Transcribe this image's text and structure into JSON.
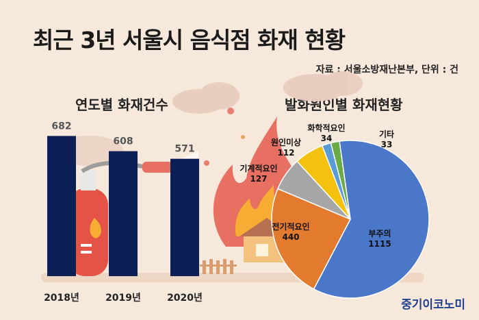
{
  "title": "최근 3년 서울시 음식점 화재 현황",
  "source": "자료 : 서울소방재난본부, 단위 : 건",
  "brand": "중기이코노미",
  "chart_data": [
    {
      "type": "bar",
      "title": "연도별 화재건수",
      "categories": [
        "2018년",
        "2019년",
        "2020년"
      ],
      "values": [
        682,
        608,
        571
      ],
      "color": "#0c1f57"
    },
    {
      "type": "pie",
      "title": "발화원인별 화재현황",
      "slices": [
        {
          "label": "부주의",
          "value": 1115,
          "color": "#4a77c8"
        },
        {
          "label": "전기적요인",
          "value": 440,
          "color": "#e27b2e"
        },
        {
          "label": "기계적요인",
          "value": 127,
          "color": "#a6a6a6"
        },
        {
          "label": "원인미상",
          "value": 112,
          "color": "#f4c20e"
        },
        {
          "label": "화학적요인",
          "value": 34,
          "color": "#5a9bd5"
        },
        {
          "label": "기타",
          "value": 33,
          "color": "#6aab45"
        }
      ]
    }
  ]
}
